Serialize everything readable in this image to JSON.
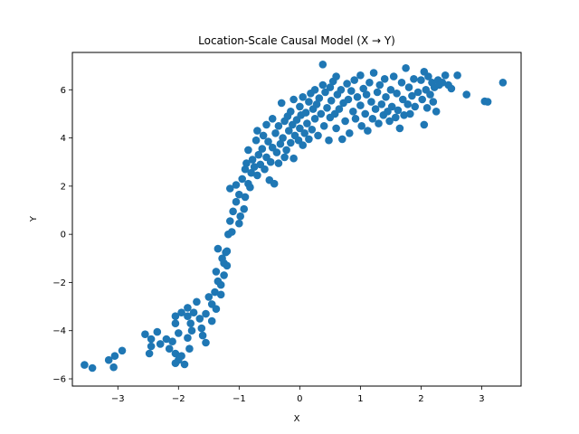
{
  "chart_data": {
    "type": "scatter",
    "title": "Location-Scale Causal Model (X → Y)",
    "xlabel": "X",
    "ylabel": "Y",
    "xlim": [
      -3.75,
      3.65
    ],
    "ylim": [
      -6.3,
      7.55
    ],
    "xticks": [
      -3,
      -2,
      -1,
      0,
      1,
      2,
      3
    ],
    "yticks": [
      -6,
      -4,
      -2,
      0,
      2,
      4,
      6
    ],
    "grid": false,
    "marker_color": "#1f77b4",
    "points": [
      [
        -3.55,
        -5.42
      ],
      [
        -3.42,
        -5.55
      ],
      [
        -3.15,
        -5.22
      ],
      [
        -3.07,
        -5.52
      ],
      [
        -2.93,
        -4.83
      ],
      [
        -3.05,
        -5.05
      ],
      [
        -2.55,
        -4.15
      ],
      [
        -2.45,
        -4.35
      ],
      [
        -2.35,
        -4.05
      ],
      [
        -2.45,
        -4.65
      ],
      [
        -2.3,
        -4.55
      ],
      [
        -2.48,
        -4.95
      ],
      [
        -2.2,
        -4.35
      ],
      [
        -2.15,
        -4.75
      ],
      [
        -2.1,
        -4.45
      ],
      [
        -2.05,
        -4.95
      ],
      [
        -2.0,
        -5.22
      ],
      [
        -2.05,
        -5.35
      ],
      [
        -1.95,
        -5.05
      ],
      [
        -1.9,
        -5.4
      ],
      [
        -2.0,
        -4.1
      ],
      [
        -2.05,
        -3.7
      ],
      [
        -2.05,
        -3.4
      ],
      [
        -1.95,
        -3.25
      ],
      [
        -1.85,
        -3.05
      ],
      [
        -1.85,
        -3.4
      ],
      [
        -1.8,
        -3.7
      ],
      [
        -1.78,
        -4.0
      ],
      [
        -1.85,
        -4.3
      ],
      [
        -1.82,
        -4.75
      ],
      [
        -1.75,
        -3.25
      ],
      [
        -1.7,
        -2.8
      ],
      [
        -1.65,
        -3.5
      ],
      [
        -1.6,
        -4.2
      ],
      [
        -1.55,
        -4.5
      ],
      [
        -1.62,
        -3.9
      ],
      [
        -1.55,
        -3.3
      ],
      [
        -1.5,
        -2.6
      ],
      [
        -1.45,
        -2.9
      ],
      [
        -1.45,
        -3.6
      ],
      [
        -1.4,
        -2.4
      ],
      [
        -1.38,
        -3.1
      ],
      [
        -1.35,
        -1.95
      ],
      [
        -1.3,
        -2.1
      ],
      [
        -1.3,
        -2.5
      ],
      [
        -1.38,
        -1.55
      ],
      [
        -1.35,
        -0.6
      ],
      [
        -1.28,
        -1.0
      ],
      [
        -1.25,
        -1.2
      ],
      [
        -1.22,
        -0.75
      ],
      [
        -1.2,
        -1.3
      ],
      [
        -1.25,
        -1.7
      ],
      [
        -1.2,
        -0.7
      ],
      [
        -1.18,
        0.0
      ],
      [
        -1.15,
        0.55
      ],
      [
        -1.12,
        0.1
      ],
      [
        -1.1,
        0.95
      ],
      [
        -1.15,
        1.9
      ],
      [
        -1.05,
        2.05
      ],
      [
        -1.05,
        1.35
      ],
      [
        -1.0,
        0.45
      ],
      [
        -1.0,
        1.65
      ],
      [
        -0.98,
        0.75
      ],
      [
        -0.95,
        2.3
      ],
      [
        -0.92,
        1.05
      ],
      [
        -0.9,
        1.55
      ],
      [
        -0.9,
        2.7
      ],
      [
        -0.88,
        2.95
      ],
      [
        -0.85,
        2.1
      ],
      [
        -0.85,
        3.5
      ],
      [
        -0.82,
        1.95
      ],
      [
        -0.8,
        2.55
      ],
      [
        -0.78,
        3.1
      ],
      [
        -0.75,
        2.8
      ],
      [
        -0.72,
        3.9
      ],
      [
        -0.7,
        4.3
      ],
      [
        -0.7,
        2.45
      ],
      [
        -0.68,
        3.3
      ],
      [
        -0.65,
        2.9
      ],
      [
        -0.62,
        3.55
      ],
      [
        -0.6,
        4.1
      ],
      [
        -0.58,
        2.7
      ],
      [
        -0.55,
        3.2
      ],
      [
        -0.55,
        4.55
      ],
      [
        -0.52,
        3.85
      ],
      [
        -0.5,
        2.25
      ],
      [
        -0.48,
        3.0
      ],
      [
        -0.45,
        3.6
      ],
      [
        -0.45,
        4.8
      ],
      [
        -0.42,
        2.1
      ],
      [
        -0.4,
        4.2
      ],
      [
        -0.38,
        3.4
      ],
      [
        -0.35,
        2.95
      ],
      [
        -0.35,
        4.5
      ],
      [
        -0.32,
        3.75
      ],
      [
        -0.3,
        5.45
      ],
      [
        -0.28,
        4.0
      ],
      [
        -0.25,
        3.2
      ],
      [
        -0.25,
        4.7
      ],
      [
        -0.22,
        3.5
      ],
      [
        -0.2,
        4.9
      ],
      [
        -0.18,
        4.3
      ],
      [
        -0.15,
        3.8
      ],
      [
        -0.15,
        5.1
      ],
      [
        -0.12,
        4.55
      ],
      [
        -0.1,
        3.15
      ],
      [
        -0.1,
        5.6
      ],
      [
        -0.08,
        4.1
      ],
      [
        -0.05,
        4.75
      ],
      [
        -0.02,
        3.9
      ],
      [
        0.0,
        5.3
      ],
      [
        0.0,
        4.4
      ],
      [
        0.02,
        4.95
      ],
      [
        0.05,
        3.7
      ],
      [
        0.05,
        5.7
      ],
      [
        0.08,
        4.2
      ],
      [
        0.1,
        5.05
      ],
      [
        0.12,
        4.6
      ],
      [
        0.15,
        5.5
      ],
      [
        0.15,
        3.95
      ],
      [
        0.18,
        5.85
      ],
      [
        0.2,
        4.35
      ],
      [
        0.22,
        5.2
      ],
      [
        0.25,
        4.8
      ],
      [
        0.25,
        6.0
      ],
      [
        0.28,
        5.4
      ],
      [
        0.3,
        4.1
      ],
      [
        0.32,
        5.65
      ],
      [
        0.35,
        5.0
      ],
      [
        0.38,
        6.2
      ],
      [
        0.38,
        7.05
      ],
      [
        0.4,
        4.5
      ],
      [
        0.42,
        5.9
      ],
      [
        0.45,
        5.25
      ],
      [
        0.48,
        3.9
      ],
      [
        0.5,
        6.1
      ],
      [
        0.5,
        4.85
      ],
      [
        0.52,
        5.55
      ],
      [
        0.55,
        6.35
      ],
      [
        0.58,
        5.0
      ],
      [
        0.6,
        4.4
      ],
      [
        0.6,
        6.55
      ],
      [
        0.62,
        5.8
      ],
      [
        0.65,
        5.2
      ],
      [
        0.68,
        6.0
      ],
      [
        0.7,
        3.95
      ],
      [
        0.72,
        5.45
      ],
      [
        0.75,
        4.7
      ],
      [
        0.78,
        6.25
      ],
      [
        0.8,
        5.6
      ],
      [
        0.82,
        4.2
      ],
      [
        0.85,
        5.95
      ],
      [
        0.88,
        5.1
      ],
      [
        0.9,
        6.4
      ],
      [
        0.92,
        4.8
      ],
      [
        0.95,
        5.7
      ],
      [
        1.0,
        6.6
      ],
      [
        1.0,
        5.35
      ],
      [
        1.02,
        4.5
      ],
      [
        1.05,
        6.05
      ],
      [
        1.08,
        5.0
      ],
      [
        1.1,
        5.8
      ],
      [
        1.12,
        4.3
      ],
      [
        1.15,
        6.3
      ],
      [
        1.18,
        5.5
      ],
      [
        1.2,
        4.8
      ],
      [
        1.22,
        6.7
      ],
      [
        1.25,
        5.2
      ],
      [
        1.28,
        5.9
      ],
      [
        1.3,
        4.6
      ],
      [
        1.32,
        6.2
      ],
      [
        1.35,
        5.4
      ],
      [
        1.38,
        4.95
      ],
      [
        1.4,
        6.45
      ],
      [
        1.42,
        5.7
      ],
      [
        1.45,
        5.1
      ],
      [
        1.48,
        4.7
      ],
      [
        1.5,
        6.0
      ],
      [
        1.52,
        5.3
      ],
      [
        1.55,
        6.55
      ],
      [
        1.58,
        4.85
      ],
      [
        1.6,
        5.85
      ],
      [
        1.62,
        5.15
      ],
      [
        1.65,
        4.4
      ],
      [
        1.68,
        6.3
      ],
      [
        1.7,
        5.6
      ],
      [
        1.72,
        4.95
      ],
      [
        1.75,
        6.9
      ],
      [
        1.78,
        5.4
      ],
      [
        1.8,
        6.1
      ],
      [
        1.82,
        5.0
      ],
      [
        1.85,
        5.75
      ],
      [
        1.88,
        6.45
      ],
      [
        1.9,
        5.3
      ],
      [
        1.95,
        5.9
      ],
      [
        2.0,
        6.4
      ],
      [
        2.02,
        5.6
      ],
      [
        2.05,
        4.55
      ],
      [
        2.05,
        6.75
      ],
      [
        2.08,
        6.0
      ],
      [
        2.1,
        5.25
      ],
      [
        2.12,
        6.55
      ],
      [
        2.15,
        5.8
      ],
      [
        2.18,
        6.3
      ],
      [
        2.2,
        5.5
      ],
      [
        2.22,
        6.1
      ],
      [
        2.25,
        5.1
      ],
      [
        2.28,
        6.4
      ],
      [
        2.3,
        6.2
      ],
      [
        2.35,
        6.3
      ],
      [
        2.4,
        6.6
      ],
      [
        2.45,
        6.2
      ],
      [
        2.5,
        6.05
      ],
      [
        2.6,
        6.6
      ],
      [
        2.75,
        5.8
      ],
      [
        3.05,
        5.52
      ],
      [
        3.1,
        5.5
      ],
      [
        3.35,
        6.3
      ]
    ]
  }
}
